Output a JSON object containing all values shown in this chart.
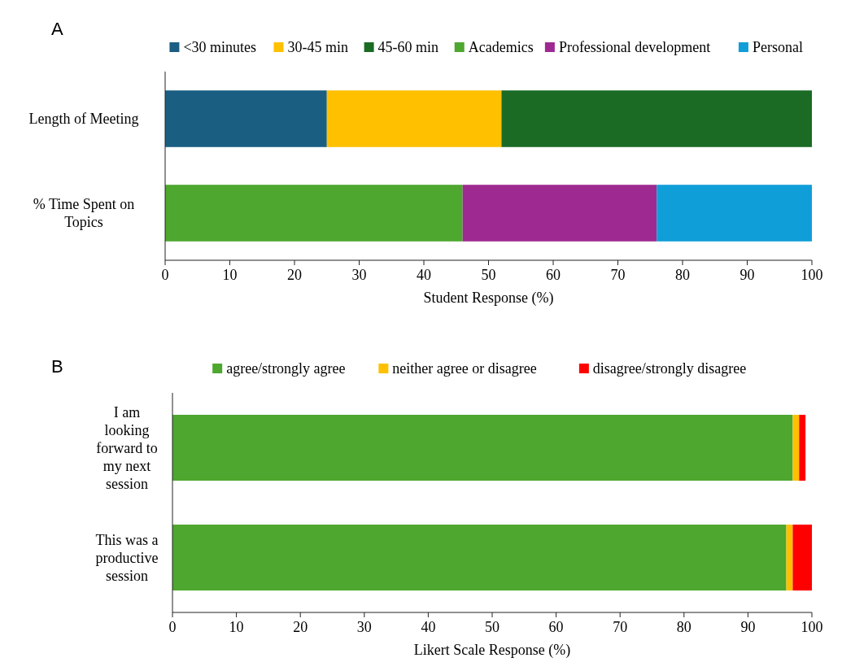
{
  "chart_data": [
    {
      "type": "bar",
      "title": "A",
      "orientation": "horizontal",
      "stacked": true,
      "categories": [
        "Length of Meeting",
        "% Time Spent on Topics"
      ],
      "xlabel": "Student Response (%)",
      "xlim": [
        0,
        100
      ],
      "xticks": [
        0,
        10,
        20,
        30,
        40,
        50,
        60,
        70,
        80,
        90,
        100
      ],
      "legend": "top",
      "grid": false,
      "series": [
        {
          "name": "<30 minutes",
          "color": "#1a5e82",
          "values": [
            25,
            null
          ]
        },
        {
          "name": "30-45 min",
          "color": "#ffc000",
          "values": [
            27,
            null
          ]
        },
        {
          "name": "45-60 min",
          "color": "#1b6b25",
          "values": [
            48,
            null
          ]
        },
        {
          "name": "Academics",
          "color": "#4ea72e",
          "values": [
            null,
            46
          ]
        },
        {
          "name": "Professional development",
          "color": "#9e2a91",
          "values": [
            null,
            30
          ]
        },
        {
          "name": "Personal",
          "color": "#109ed8",
          "values": [
            null,
            24
          ]
        }
      ]
    },
    {
      "type": "bar",
      "title": "B",
      "orientation": "horizontal",
      "stacked": true,
      "categories": [
        "I am looking forward to my next session",
        "This was a productive session"
      ],
      "xlabel": "Likert Scale Response (%)",
      "xlim": [
        0,
        100
      ],
      "xticks": [
        0,
        10,
        20,
        30,
        40,
        50,
        60,
        70,
        80,
        90,
        100
      ],
      "legend": "top",
      "grid": false,
      "series": [
        {
          "name": "agree/strongly agree",
          "color": "#4ea72e",
          "values": [
            97,
            96
          ]
        },
        {
          "name": "neither agree or disagree",
          "color": "#ffc000",
          "values": [
            1,
            1
          ]
        },
        {
          "name": "disagree/strongly disagree",
          "color": "#ff0000",
          "values": [
            1,
            3
          ]
        }
      ]
    }
  ]
}
